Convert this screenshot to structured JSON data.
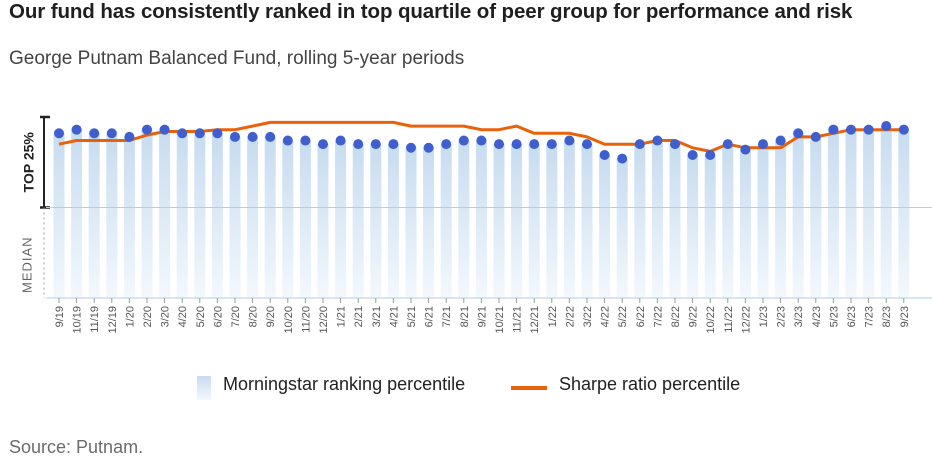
{
  "title": "Our fund has consistently ranked in top quartile of peer group for performance and risk",
  "subtitle": "George Putnam Balanced Fund, rolling 5-year periods",
  "source": "Source: Putnam.",
  "colors": {
    "bar_top": "#c7dcf0",
    "bar_bottom": "#f3f8fd",
    "dot": "#3f5fcf",
    "line": "#e8620c",
    "axis": "#222222"
  },
  "chart_data": {
    "type": "bar",
    "y_axis_labels": {
      "top": "TOP 25%",
      "bottom": "MEDIAN"
    },
    "ylim": [
      50,
      100
    ],
    "y_markers": [
      75
    ],
    "categories": [
      "9/19",
      "10/19",
      "11/19",
      "12/19",
      "1/20",
      "2/20",
      "3/20",
      "4/20",
      "5/20",
      "6/20",
      "7/20",
      "8/20",
      "9/20",
      "10/20",
      "11/20",
      "12/20",
      "1/21",
      "2/21",
      "3/21",
      "4/21",
      "5/21",
      "6/21",
      "7/21",
      "8/21",
      "9/21",
      "10/21",
      "11/21",
      "12/21",
      "1/22",
      "2/22",
      "3/22",
      "4/22",
      "5/22",
      "6/22",
      "7/22",
      "8/22",
      "9/22",
      "10/22",
      "11/22",
      "12/22",
      "1/23",
      "2/23",
      "3/23",
      "4/23",
      "5/23",
      "6/23",
      "7/23",
      "8/23",
      "9/23"
    ],
    "series": [
      {
        "name": "Morningstar ranking percentile",
        "type": "bar+dots",
        "values": [
          95.5,
          96.5,
          95.5,
          95.5,
          94.5,
          96.5,
          96.5,
          95.5,
          95.5,
          95.5,
          94.5,
          94.5,
          94.5,
          93.5,
          93.5,
          92.5,
          93.5,
          92.5,
          92.5,
          92.5,
          91.5,
          91.5,
          92.5,
          93.5,
          93.5,
          92.5,
          92.5,
          92.5,
          92.5,
          93.5,
          92.5,
          89.5,
          88.5,
          92.5,
          93.5,
          92.5,
          89.5,
          89.5,
          92.5,
          91.0,
          92.5,
          93.5,
          95.5,
          94.5,
          96.5,
          96.5,
          96.5,
          97.5,
          96.5
        ]
      },
      {
        "name": "Sharpe ratio percentile",
        "type": "line",
        "values": [
          92.5,
          93.5,
          93.5,
          93.5,
          93.5,
          95.0,
          96.0,
          96.0,
          96.0,
          96.5,
          96.5,
          97.5,
          98.5,
          98.5,
          98.5,
          98.5,
          98.5,
          98.5,
          98.5,
          98.5,
          97.5,
          97.5,
          97.5,
          97.5,
          96.5,
          96.5,
          97.5,
          95.5,
          95.5,
          95.5,
          94.5,
          92.5,
          92.5,
          92.5,
          93.5,
          93.5,
          91.5,
          90.5,
          92.5,
          91.5,
          91.5,
          91.5,
          94.5,
          94.5,
          95.5,
          96.5,
          96.5,
          96.5,
          96.5
        ]
      }
    ],
    "legend": {
      "placement": "bottom",
      "items": [
        "Morningstar ranking percentile",
        "Sharpe ratio percentile"
      ]
    },
    "grid": false
  }
}
